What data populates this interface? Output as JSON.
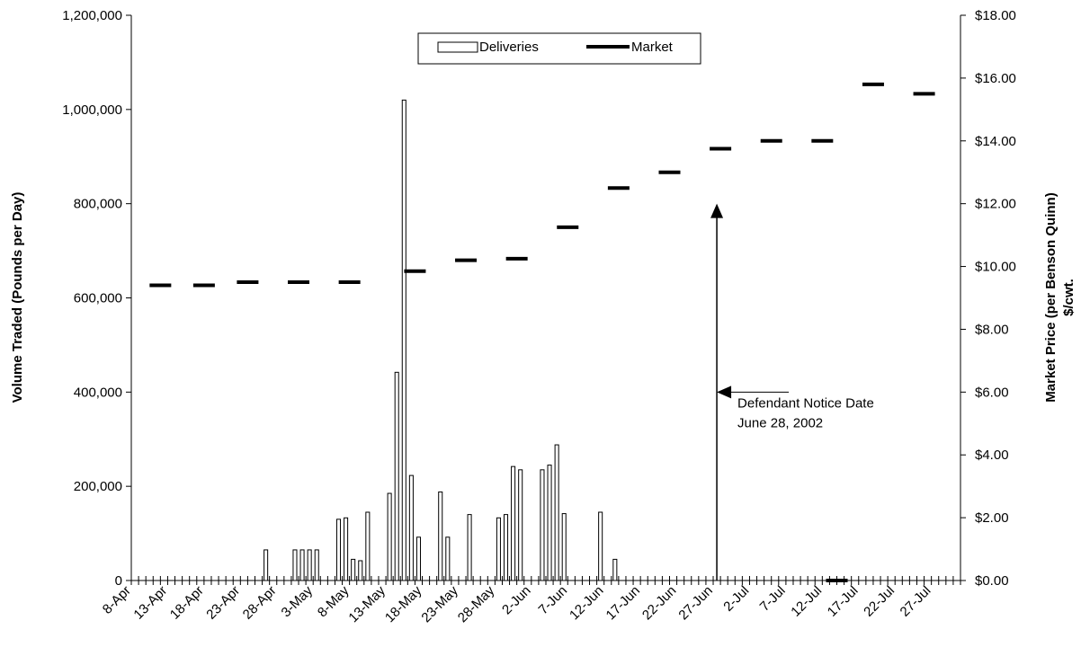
{
  "chart_data": {
    "type": "bar",
    "title": "",
    "ylabel": "Volume Traded (Pounds per Day)",
    "y2label_line1": "Market Price (per Benson Quinn)",
    "y2label_line2": "$/cwt.",
    "ylim": [
      0,
      1200000
    ],
    "y2lim": [
      0,
      18
    ],
    "grid": false,
    "legend_placement": "top-center",
    "x_start": "2002-04-08",
    "x_end": "2002-07-31",
    "x_tick_labels": [
      "8-Apr",
      "13-Apr",
      "18-Apr",
      "23-Apr",
      "28-Apr",
      "3-May",
      "8-May",
      "13-May",
      "18-May",
      "23-May",
      "28-May",
      "2-Jun",
      "7-Jun",
      "12-Jun",
      "17-Jun",
      "22-Jun",
      "27-Jun",
      "2-Jul",
      "7-Jul",
      "12-Jul",
      "17-Jul",
      "22-Jul",
      "27-Jul"
    ],
    "x_tick_dates": [
      "2002-04-08",
      "2002-04-13",
      "2002-04-18",
      "2002-04-23",
      "2002-04-28",
      "2002-05-03",
      "2002-05-08",
      "2002-05-13",
      "2002-05-18",
      "2002-05-23",
      "2002-05-28",
      "2002-06-02",
      "2002-06-07",
      "2002-06-12",
      "2002-06-17",
      "2002-06-22",
      "2002-06-27",
      "2002-07-02",
      "2002-07-07",
      "2002-07-12",
      "2002-07-17",
      "2002-07-22",
      "2002-07-27"
    ],
    "y_tick_labels": [
      "0",
      "200,000",
      "400,000",
      "600,000",
      "800,000",
      "1,000,000",
      "1,200,000"
    ],
    "y_tick_values": [
      0,
      200000,
      400000,
      600000,
      800000,
      1000000,
      1200000
    ],
    "y2_tick_labels": [
      "$0.00",
      "$2.00",
      "$4.00",
      "$6.00",
      "$8.00",
      "$10.00",
      "$12.00",
      "$14.00",
      "$16.00",
      "$18.00"
    ],
    "y2_tick_values": [
      0,
      2,
      4,
      6,
      8,
      10,
      12,
      14,
      16,
      18
    ],
    "series": [
      {
        "name": "Deliveries",
        "kind": "bar",
        "points": [
          {
            "x": "2002-04-26",
            "y": 65000
          },
          {
            "x": "2002-04-30",
            "y": 65000
          },
          {
            "x": "2002-05-01",
            "y": 65000
          },
          {
            "x": "2002-05-02",
            "y": 65000
          },
          {
            "x": "2002-05-03",
            "y": 65000
          },
          {
            "x": "2002-05-06",
            "y": 130000
          },
          {
            "x": "2002-05-07",
            "y": 133000
          },
          {
            "x": "2002-05-08",
            "y": 45000
          },
          {
            "x": "2002-05-09",
            "y": 42000
          },
          {
            "x": "2002-05-10",
            "y": 145000
          },
          {
            "x": "2002-05-13",
            "y": 185000
          },
          {
            "x": "2002-05-14",
            "y": 442000
          },
          {
            "x": "2002-05-15",
            "y": 1020000
          },
          {
            "x": "2002-05-16",
            "y": 223000
          },
          {
            "x": "2002-05-17",
            "y": 92000
          },
          {
            "x": "2002-05-20",
            "y": 188000
          },
          {
            "x": "2002-05-21",
            "y": 92000
          },
          {
            "x": "2002-05-24",
            "y": 140000
          },
          {
            "x": "2002-05-28",
            "y": 133000
          },
          {
            "x": "2002-05-29",
            "y": 140000
          },
          {
            "x": "2002-05-30",
            "y": 242000
          },
          {
            "x": "2002-05-31",
            "y": 235000
          },
          {
            "x": "2002-06-03",
            "y": 235000
          },
          {
            "x": "2002-06-04",
            "y": 245000
          },
          {
            "x": "2002-06-05",
            "y": 288000
          },
          {
            "x": "2002-06-06",
            "y": 142000
          },
          {
            "x": "2002-06-11",
            "y": 145000
          },
          {
            "x": "2002-06-13",
            "y": 45000
          }
        ]
      },
      {
        "name": "Market",
        "kind": "step-dash",
        "points": [
          {
            "x": "2002-04-12",
            "y": 9.4
          },
          {
            "x": "2002-04-18",
            "y": 9.4
          },
          {
            "x": "2002-04-24",
            "y": 9.5
          },
          {
            "x": "2002-05-01",
            "y": 9.5
          },
          {
            "x": "2002-05-08",
            "y": 9.5
          },
          {
            "x": "2002-05-17",
            "y": 9.85
          },
          {
            "x": "2002-05-24",
            "y": 10.2
          },
          {
            "x": "2002-05-31",
            "y": 10.25
          },
          {
            "x": "2002-06-07",
            "y": 11.25
          },
          {
            "x": "2002-06-14",
            "y": 12.5
          },
          {
            "x": "2002-06-21",
            "y": 13.0
          },
          {
            "x": "2002-06-28",
            "y": 13.75
          },
          {
            "x": "2002-07-05",
            "y": 14.0
          },
          {
            "x": "2002-07-12",
            "y": 14.0
          },
          {
            "x": "2002-07-14",
            "y": 0.0
          },
          {
            "x": "2002-07-19",
            "y": 15.8
          },
          {
            "x": "2002-07-26",
            "y": 15.5
          }
        ]
      }
    ],
    "annotation": {
      "line1": "Defendant Notice Date",
      "line2": "June 28, 2002",
      "x": "2002-06-27",
      "arrow_top_y": 800000,
      "pointer_y": 400000
    }
  }
}
